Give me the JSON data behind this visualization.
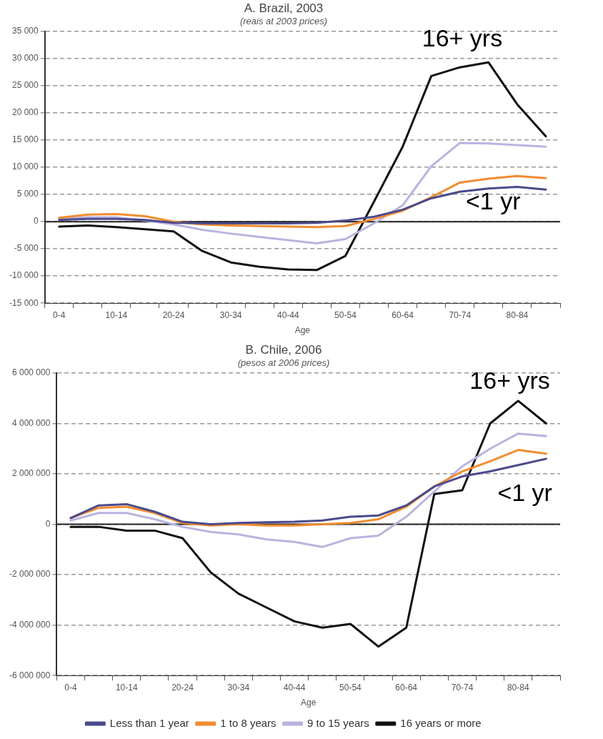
{
  "chart_data": [
    {
      "type": "line",
      "title": "A. Brazil, 2003",
      "subtitle": "(reais at 2003 prices)",
      "xlabel": "Age",
      "categories": [
        "0-4",
        null,
        "10-14",
        null,
        "20-24",
        null,
        "30-34",
        null,
        "40-44",
        null,
        "50-54",
        null,
        "60-64",
        null,
        "70-74",
        null,
        "80-84",
        null
      ],
      "series": [
        {
          "color": "#4b4a8c",
          "values": [
            300,
            500,
            500,
            300,
            -200,
            -300,
            -300,
            -300,
            -300,
            -200,
            200,
            900,
            2200,
            4300,
            5500,
            6100,
            6400,
            5900
          ]
        },
        {
          "color": "#f28c30",
          "values": [
            700,
            1300,
            1400,
            1000,
            0,
            -500,
            -700,
            -800,
            -900,
            -1000,
            -800,
            500,
            2000,
            4500,
            7200,
            7900,
            8400,
            8000
          ]
        },
        {
          "color": "#b8b4e0",
          "values": [
            500,
            800,
            800,
            200,
            -500,
            -1500,
            -2200,
            -2800,
            -3400,
            -4000,
            -3200,
            -300,
            3000,
            10200,
            14500,
            14400,
            14100,
            13800
          ]
        },
        {
          "color": "#111111",
          "values": [
            -900,
            -700,
            -1000,
            -1400,
            -1800,
            -5400,
            -7500,
            -8300,
            -8800,
            -8900,
            -6300,
            3700,
            13800,
            26800,
            28400,
            29300,
            21600,
            15700
          ]
        }
      ],
      "ylim": [
        -15000,
        35000
      ],
      "yticks": [
        {
          "value": -15000,
          "label": "-15 000"
        },
        {
          "value": -10000,
          "label": "-10 000"
        },
        {
          "value": -5000,
          "label": "-5 000"
        },
        0,
        {
          "value": 5000,
          "label": "5 000"
        },
        {
          "value": 10000,
          "label": "10 000"
        },
        {
          "value": 15000,
          "label": "15 000"
        },
        {
          "value": 20000,
          "label": "20 000"
        },
        {
          "value": 25000,
          "label": "25 000"
        },
        {
          "value": 30000,
          "label": "30 000"
        },
        {
          "value": 35000,
          "label": "35 000"
        }
      ],
      "grid": "y",
      "marker": "none",
      "line_style": "solid",
      "legend": false,
      "ref_lines": [
        {
          "axis": "y",
          "value": 0,
          "color": "#222222"
        }
      ],
      "annotations": [
        "16+ yrs",
        "<1 yr"
      ]
    },
    {
      "type": "line",
      "title": "B. Chile, 2006",
      "subtitle": "(pesos at 2006 prices)",
      "xlabel": "Age",
      "categories": [
        "0-4",
        null,
        "10-14",
        null,
        "20-24",
        null,
        "30-34",
        null,
        "40-44",
        null,
        "50-54",
        null,
        "60-64",
        null,
        "70-74",
        null,
        "80-84",
        null
      ],
      "series": [
        {
          "name": "Less than 1 year",
          "color": "#4b4a8c",
          "values": [
            250000,
            750000,
            800000,
            500000,
            100000,
            0,
            50000,
            80000,
            100000,
            150000,
            300000,
            350000,
            750000,
            1500000,
            1900000,
            2100000,
            2350000,
            2600000
          ]
        },
        {
          "name": "1 to 8 years",
          "color": "#f28c30",
          "values": [
            250000,
            650000,
            700000,
            450000,
            50000,
            -50000,
            0,
            -50000,
            -50000,
            0,
            50000,
            200000,
            700000,
            1500000,
            2100000,
            2500000,
            2950000,
            2800000
          ]
        },
        {
          "name": "9 to 15 years",
          "color": "#b8b4e0",
          "values": [
            150000,
            450000,
            450000,
            200000,
            -100000,
            -300000,
            -400000,
            -600000,
            -700000,
            -900000,
            -550000,
            -450000,
            300000,
            1300000,
            2300000,
            3000000,
            3600000,
            3500000
          ]
        },
        {
          "name": "16 years or more",
          "color": "#111111",
          "values": [
            -100000,
            -100000,
            -250000,
            -250000,
            -550000,
            -1900000,
            -2750000,
            -3300000,
            -3850000,
            -4100000,
            -3950000,
            -4850000,
            -4100000,
            1200000,
            1350000,
            4000000,
            4900000,
            4000000
          ]
        }
      ],
      "ylim": [
        -6000000,
        6000000
      ],
      "yticks": [
        {
          "value": -6000000,
          "label": "-6 000 000"
        },
        {
          "value": -4000000,
          "label": "-4 000 000"
        },
        {
          "value": -2000000,
          "label": "-2 000 000"
        },
        0,
        {
          "value": 2000000,
          "label": "2 000 000"
        },
        {
          "value": 4000000,
          "label": "4 000 000"
        },
        {
          "value": 6000000,
          "label": "6 000 000"
        }
      ],
      "grid": "y",
      "marker": "none",
      "line_style": "solid",
      "legend": "bottom",
      "ref_lines": [
        {
          "axis": "y",
          "value": 0,
          "color": "#222222"
        }
      ],
      "annotations": [
        "16+ yrs",
        "<1 yr"
      ]
    }
  ]
}
